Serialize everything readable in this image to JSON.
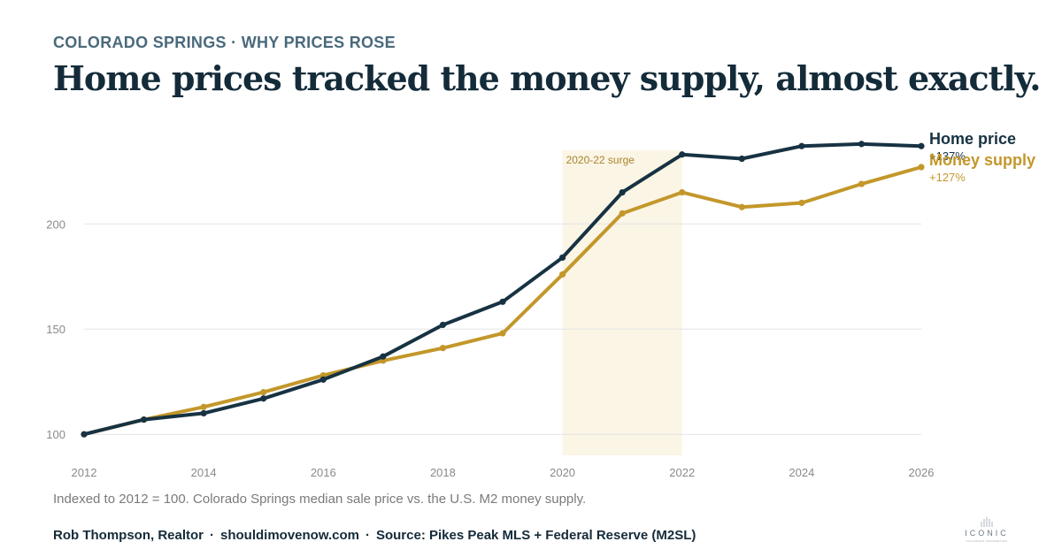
{
  "header": {
    "kicker": "COLORADO SPRINGS · WHY PRICES ROSE",
    "headline": "Home prices tracked the money supply, almost exactly."
  },
  "chart_data": {
    "type": "line",
    "title": "",
    "xlabel": "",
    "ylabel": "",
    "x": [
      2012,
      2013,
      2014,
      2015,
      2016,
      2017,
      2018,
      2019,
      2020,
      2021,
      2022,
      2023,
      2024,
      2025,
      2026
    ],
    "xlim": [
      2012,
      2026
    ],
    "ylim": [
      90,
      235
    ],
    "x_ticks": [
      "2012",
      "2014",
      "2016",
      "2018",
      "2020",
      "2022",
      "2024",
      "2026"
    ],
    "y_ticks": [
      "100",
      "150",
      "200"
    ],
    "grid": "horizontal",
    "legend": "right-end labels",
    "series": [
      {
        "name": "Home price",
        "change_label": "+137%",
        "color": "#173242",
        "values": [
          100,
          107,
          110,
          117,
          126,
          137,
          152,
          163,
          184,
          215,
          233,
          231,
          237,
          238,
          237
        ]
      },
      {
        "name": "Money supply",
        "change_label": "+127%",
        "color": "#c3972a",
        "values": [
          100,
          107,
          113,
          120,
          128,
          135,
          141,
          148,
          176,
          205,
          215,
          208,
          210,
          219,
          227
        ]
      }
    ],
    "annotations": [
      {
        "label": "2020-22 surge",
        "x_start": 2020,
        "x_end": 2022,
        "color": "#fbf5e6",
        "label_color": "#a8852c"
      }
    ]
  },
  "note": "Indexed to 2012 = 100. Colorado Springs median sale price vs. the U.S. M2 money supply.",
  "footer": {
    "author": "Rob Thompson, Realtor",
    "site": "shouldimovenow.com",
    "source": "Source: Pikes Peak MLS + Federal Reserve (M2SL)",
    "separator": "·"
  },
  "logo": {
    "word": "ICONIC",
    "subtext": "COLORADO PROPERTIES"
  }
}
